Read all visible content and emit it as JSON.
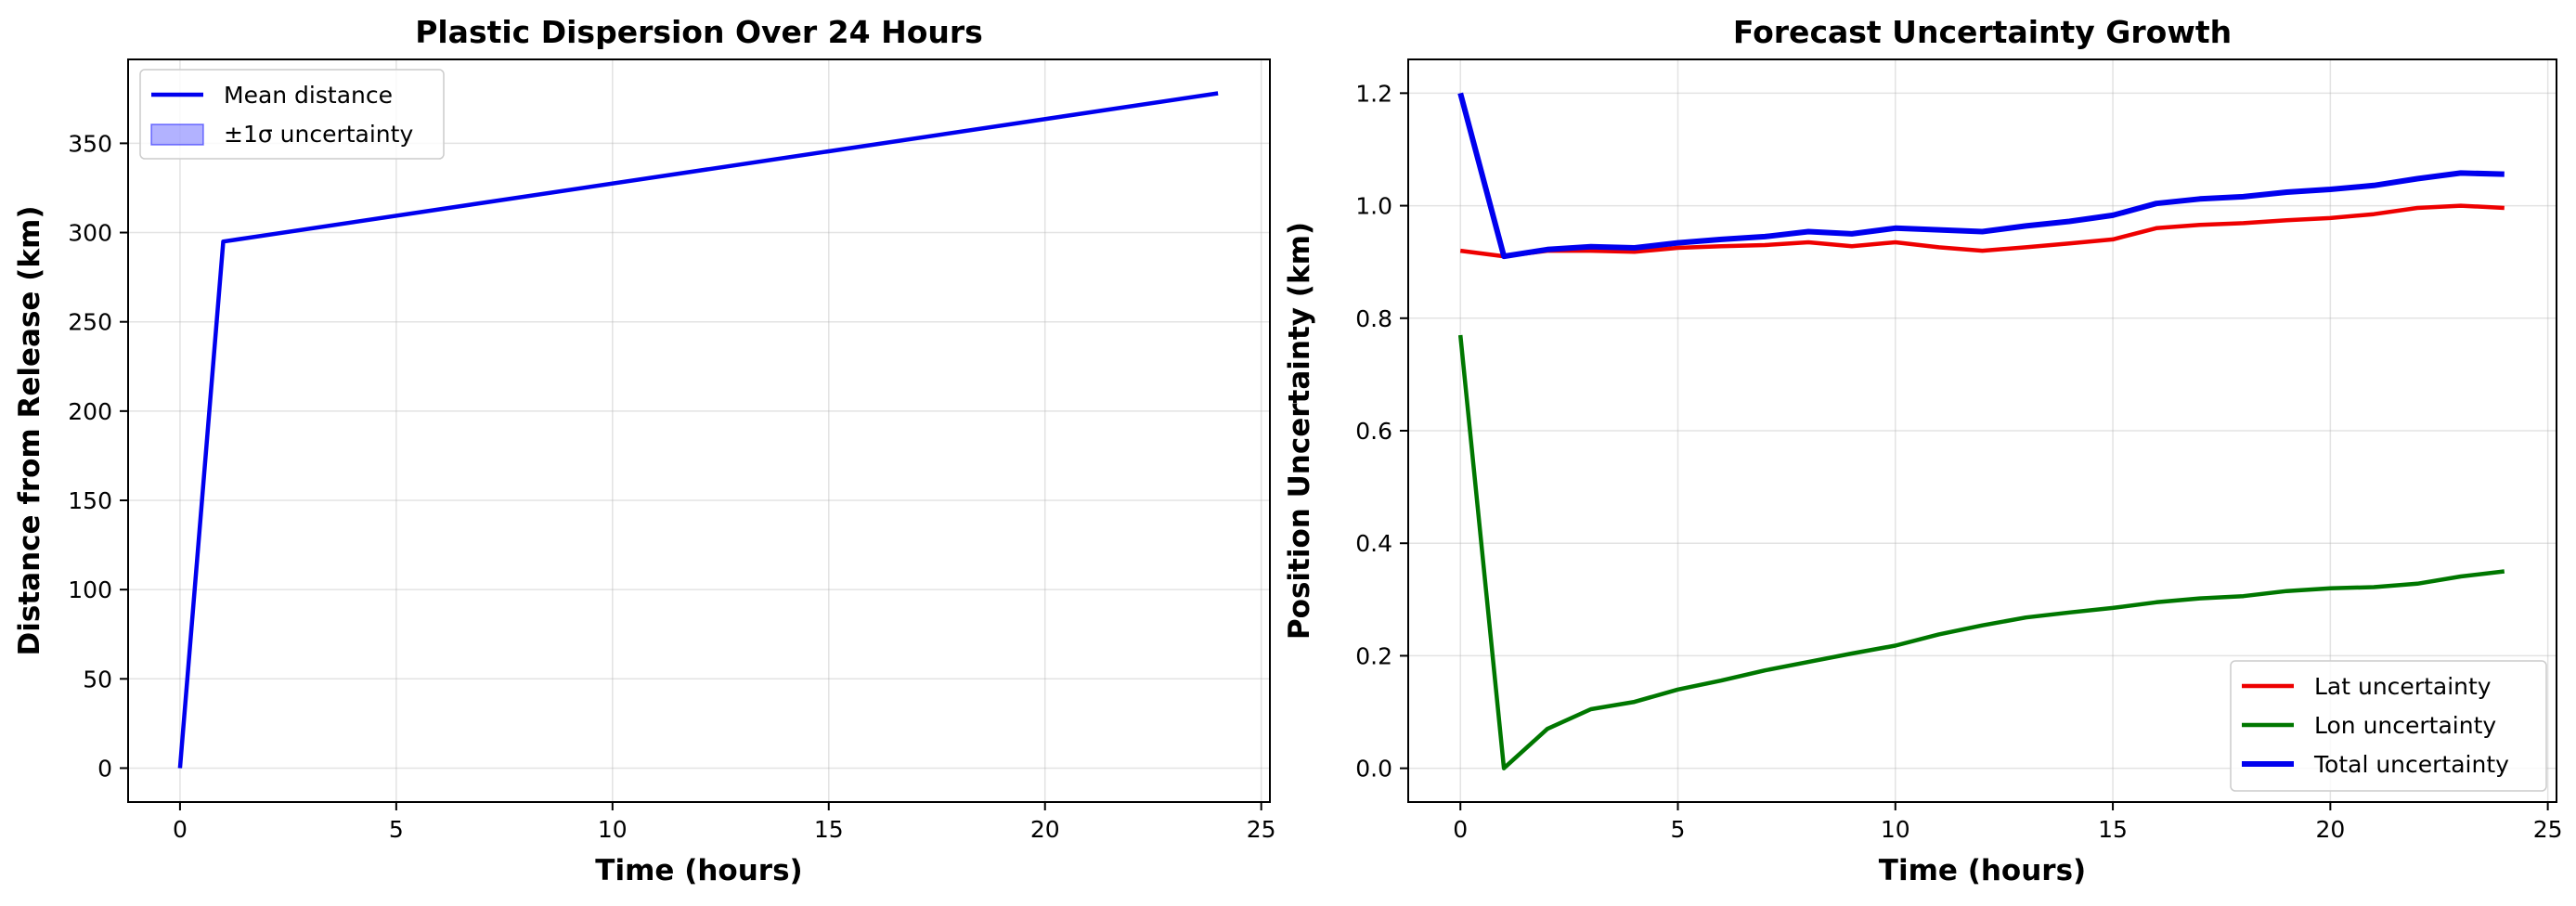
{
  "chart_data": [
    {
      "type": "line",
      "title": "Plastic Dispersion Over 24 Hours",
      "xlabel": "Time (hours)",
      "ylabel": "Distance from Release (km)",
      "xlim": [
        -1.2,
        25.2
      ],
      "ylim": [
        -19,
        397
      ],
      "xticks": [
        0,
        5,
        10,
        15,
        20,
        25
      ],
      "yticks": [
        0,
        50,
        100,
        150,
        200,
        250,
        300,
        350
      ],
      "grid": true,
      "legend_position": "top-left",
      "legend": [
        {
          "label": "Mean distance",
          "kind": "line",
          "color": "#0000ee"
        },
        {
          "label": "±1σ uncertainty",
          "kind": "patch",
          "color": "#0000ff"
        }
      ],
      "series": [
        {
          "name": "Mean distance",
          "color": "#0000ee",
          "x": [
            0,
            1,
            24
          ],
          "y": [
            0,
            295,
            378
          ]
        }
      ]
    },
    {
      "type": "line",
      "title": "Forecast Uncertainty Growth",
      "xlabel": "Time (hours)",
      "ylabel": "Position Uncertainty (km)",
      "xlim": [
        -1.2,
        25.2
      ],
      "ylim": [
        -0.06,
        1.26
      ],
      "xticks": [
        0,
        5,
        10,
        15,
        20,
        25
      ],
      "yticks": [
        0.0,
        0.2,
        0.4,
        0.6,
        0.8,
        1.0,
        1.2
      ],
      "grid": true,
      "legend_position": "bottom-right",
      "legend": [
        {
          "label": "Lat uncertainty",
          "kind": "line",
          "color": "#ee0000"
        },
        {
          "label": "Lon uncertainty",
          "kind": "line",
          "color": "#007700"
        },
        {
          "label": "Total uncertainty",
          "kind": "line",
          "color": "#0000ee"
        }
      ],
      "series": [
        {
          "name": "Lat uncertainty",
          "color": "#ee0000",
          "x": [
            0,
            1,
            2,
            3,
            4,
            5,
            6,
            7,
            8,
            9,
            10,
            11,
            12,
            13,
            14,
            15,
            16,
            17,
            18,
            19,
            20,
            21,
            22,
            23,
            24
          ],
          "y": [
            0.92,
            0.91,
            0.92,
            0.92,
            0.918,
            0.925,
            0.928,
            0.93,
            0.935,
            0.928,
            0.935,
            0.926,
            0.92,
            0.926,
            0.933,
            0.94,
            0.96,
            0.966,
            0.969,
            0.974,
            0.978,
            0.985,
            0.996,
            1.0,
            0.996
          ]
        },
        {
          "name": "Lon uncertainty",
          "color": "#007700",
          "x": [
            0,
            1,
            2,
            3,
            4,
            5,
            6,
            7,
            8,
            9,
            10,
            11,
            12,
            13,
            14,
            15,
            16,
            17,
            18,
            19,
            20,
            21,
            22,
            23,
            24
          ],
          "y": [
            0.77,
            0.0,
            0.07,
            0.105,
            0.118,
            0.14,
            0.156,
            0.174,
            0.189,
            0.204,
            0.218,
            0.238,
            0.254,
            0.268,
            0.277,
            0.285,
            0.295,
            0.302,
            0.306,
            0.315,
            0.32,
            0.322,
            0.328,
            0.341,
            0.35
          ]
        },
        {
          "name": "Total uncertainty",
          "color": "#0000ee",
          "x": [
            0,
            1,
            2,
            3,
            4,
            5,
            6,
            7,
            8,
            9,
            10,
            11,
            12,
            13,
            14,
            15,
            16,
            17,
            18,
            19,
            20,
            21,
            22,
            23,
            24
          ],
          "y": [
            1.2,
            0.91,
            0.922,
            0.927,
            0.925,
            0.934,
            0.94,
            0.945,
            0.954,
            0.95,
            0.96,
            0.957,
            0.954,
            0.964,
            0.972,
            0.983,
            1.004,
            1.012,
            1.016,
            1.024,
            1.029,
            1.036,
            1.048,
            1.058,
            1.056
          ]
        }
      ]
    }
  ]
}
